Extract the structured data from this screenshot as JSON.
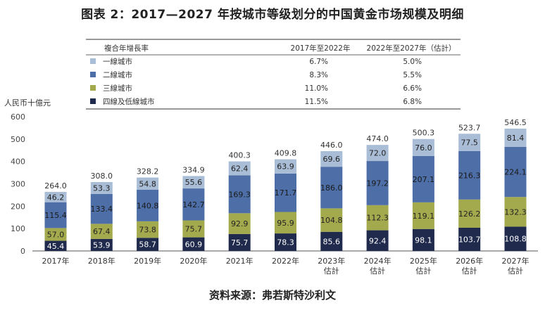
{
  "title": "图表 2：2017—2027 年按城市等级划分的中国黄金市场规模及明细",
  "source": "资料来源：弗若斯特沙利文",
  "chart_data": {
    "type": "bar",
    "stacked": true,
    "ylabel": "人民币十億元",
    "ylim": [
      0,
      600
    ],
    "yticks": [
      0,
      100,
      200,
      300,
      400,
      500,
      600
    ],
    "grid": false,
    "legend_position": "top",
    "categories": [
      "2017年",
      "2018年",
      "2019年",
      "2020年",
      "2021年",
      "2022年",
      "2023年 估計",
      "2024年 估計",
      "2025年 估計",
      "2026年 估計",
      "2027年 估計"
    ],
    "category_lines": [
      [
        "2017年"
      ],
      [
        "2018年"
      ],
      [
        "2019年"
      ],
      [
        "2020年"
      ],
      [
        "2021年"
      ],
      [
        "2022年"
      ],
      [
        "2023年",
        "估計"
      ],
      [
        "2024年",
        "估計"
      ],
      [
        "2025年",
        "估計"
      ],
      [
        "2026年",
        "估計"
      ],
      [
        "2027年",
        "估計"
      ]
    ],
    "series": [
      {
        "name": "四線及低線城市",
        "color": "#1f2a4d",
        "label_color": "#ffffff",
        "values": [
          45.4,
          53.9,
          58.7,
          60.9,
          75.7,
          78.3,
          85.6,
          92.4,
          98.1,
          103.7,
          108.8
        ]
      },
      {
        "name": "三線城市",
        "color": "#a3aa4e",
        "label_color": "#222222",
        "values": [
          57.0,
          67.4,
          73.8,
          75.7,
          92.9,
          95.9,
          104.8,
          112.3,
          119.1,
          126.2,
          132.3
        ]
      },
      {
        "name": "二線城市",
        "color": "#4d6ea6",
        "label_color": "#1a1a1a",
        "values": [
          115.4,
          133.4,
          140.8,
          142.7,
          169.3,
          171.7,
          186.0,
          197.2,
          207.1,
          216.3,
          224.1
        ]
      },
      {
        "name": "一線城市",
        "color": "#a9bdd6",
        "label_color": "#222222",
        "values": [
          46.2,
          53.3,
          54.8,
          55.6,
          62.4,
          63.9,
          69.6,
          72.0,
          76.0,
          77.5,
          81.4
        ]
      }
    ],
    "totals": [
      264.0,
      308.0,
      328.2,
      334.9,
      400.3,
      409.8,
      446.0,
      474.0,
      500.3,
      523.7,
      546.5
    ],
    "cagr_table": {
      "header": [
        "複合年增長率",
        "2017年至2022年",
        "2022年至2027年（估計）"
      ],
      "rows": [
        {
          "name": "一線城市",
          "color": "#a9bdd6",
          "values": [
            "6.7%",
            "5.0%"
          ]
        },
        {
          "name": "二線城市",
          "color": "#4d6ea6",
          "values": [
            "8.3%",
            "5.5%"
          ]
        },
        {
          "name": "三線城市",
          "color": "#a3aa4e",
          "values": [
            "11.0%",
            "6.6%"
          ]
        },
        {
          "name": "四線及低線城市",
          "color": "#1f2a4d",
          "values": [
            "11.5%",
            "6.8%"
          ]
        }
      ]
    }
  }
}
